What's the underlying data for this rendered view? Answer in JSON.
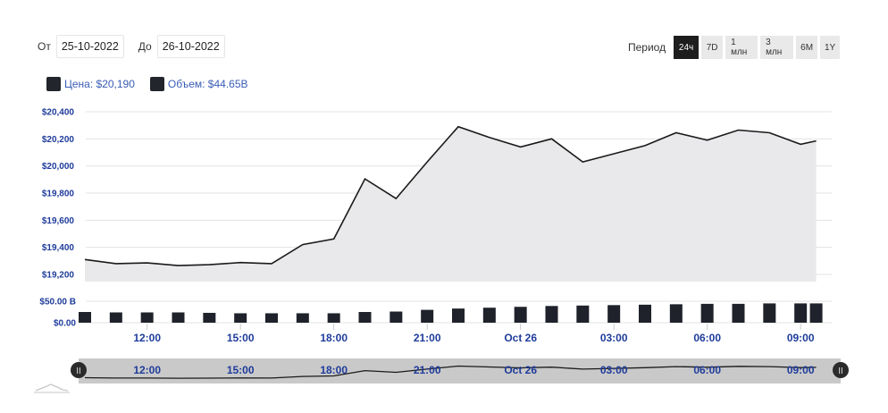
{
  "range": {
    "from_label": "От",
    "from_value": "25-10-2022",
    "to_label": "До",
    "to_value": "26-10-2022"
  },
  "period": {
    "label": "Период",
    "buttons": [
      "24ч",
      "7D",
      "1 млн",
      "3 млн",
      "6M",
      "1Y"
    ],
    "active": "24ч"
  },
  "legend": {
    "price": "Цена: $20,190",
    "volume": "Объем: $44.65B"
  },
  "colors": {
    "line": "#1a1a1a",
    "area": "#e9e9ec",
    "bar": "#1f222a",
    "axis_text": "#1f3c9b",
    "navigator_bg": "#c9c9c9"
  },
  "chart_data": {
    "type": "area",
    "y_ticks": [
      "$20,400",
      "$20,200",
      "$20,000",
      "$19,800",
      "$19,600",
      "$19,400",
      "$19,200"
    ],
    "ylim": [
      19150,
      20430
    ],
    "x_ticks": [
      "12:00",
      "15:00",
      "18:00",
      "21:00",
      "Oct 26",
      "03:00",
      "06:00",
      "09:00"
    ],
    "x_tick_hours": [
      12,
      15,
      18,
      21,
      24,
      27,
      30,
      33
    ],
    "x_range_hours": [
      10,
      34
    ],
    "hours": [
      10,
      11,
      12,
      13,
      14,
      15,
      16,
      17,
      18,
      19,
      20,
      21,
      22,
      23,
      24,
      25,
      26,
      27,
      28,
      29,
      30,
      31,
      32,
      33,
      33.5
    ],
    "price": [
      19310,
      19280,
      19285,
      19265,
      19272,
      19288,
      19280,
      19420,
      19462,
      19905,
      19760,
      20030,
      20290,
      20210,
      20140,
      20200,
      20030,
      20090,
      20150,
      20245,
      20190,
      20265,
      20245,
      20160,
      20185
    ],
    "volume_ticks": [
      "$50.00 B",
      "$0.00"
    ],
    "volume_ylim": [
      0,
      50
    ],
    "volume": [
      25,
      24,
      24,
      24,
      23,
      22,
      22,
      22,
      22,
      25,
      26,
      30,
      33,
      35,
      37,
      39,
      40,
      41,
      42,
      43,
      44,
      44,
      45,
      45,
      45
    ]
  },
  "navigator": {
    "labels": [
      "12:00",
      "15:00",
      "18:00",
      "21:00",
      "Oct 26",
      "03:00",
      "06:00",
      "09:00"
    ],
    "left_handle": "II",
    "right_handle": "II"
  }
}
